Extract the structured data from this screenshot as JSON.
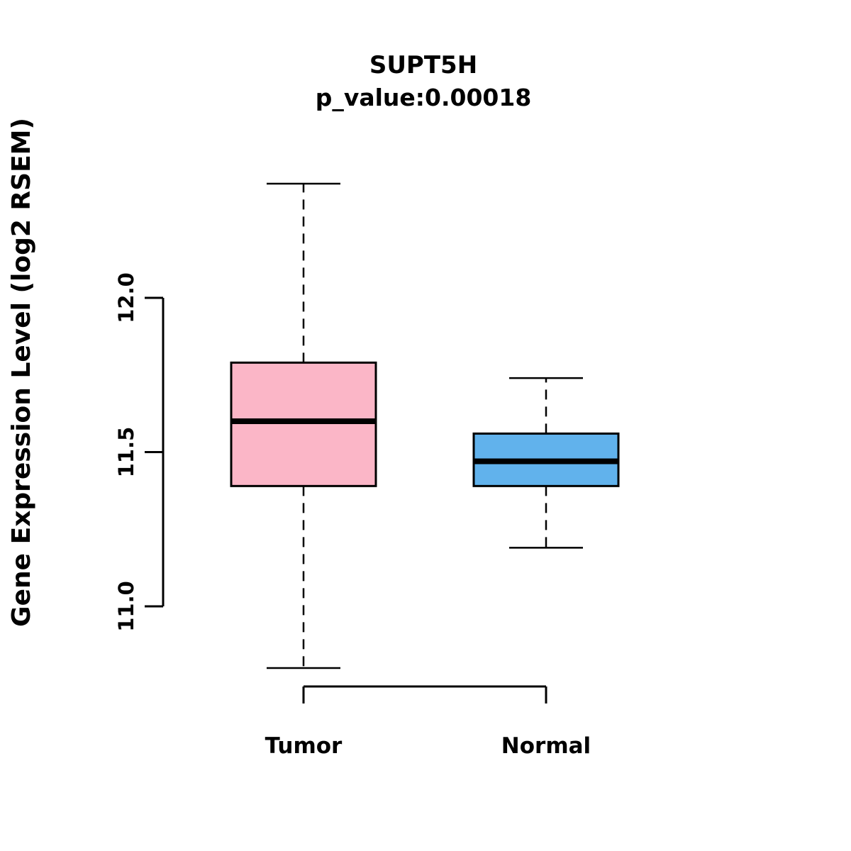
{
  "chart_data": {
    "type": "boxplot",
    "title": "SUPT5H",
    "subtitle": "p_value:0.00018",
    "ylabel": "Gene Expression Level (log2 RSEM)",
    "xlabel": "",
    "categories": [
      "Tumor",
      "Normal"
    ],
    "yticks": [
      11.0,
      11.5,
      12.0
    ],
    "ylim": [
      10.75,
      12.4
    ],
    "grid": false,
    "legend": "none",
    "series": [
      {
        "name": "Tumor",
        "whisker_low": 10.8,
        "q1": 11.39,
        "median": 11.6,
        "q3": 11.79,
        "whisker_high": 12.37,
        "color": "#FBB6C7"
      },
      {
        "name": "Normal",
        "whisker_low": 11.19,
        "q1": 11.39,
        "median": 11.47,
        "q3": 11.56,
        "whisker_high": 11.74,
        "color": "#61B2EC"
      }
    ],
    "style": {
      "box_stroke": "#000000",
      "median_color": "#000000",
      "whisker_style": "dashed"
    }
  }
}
